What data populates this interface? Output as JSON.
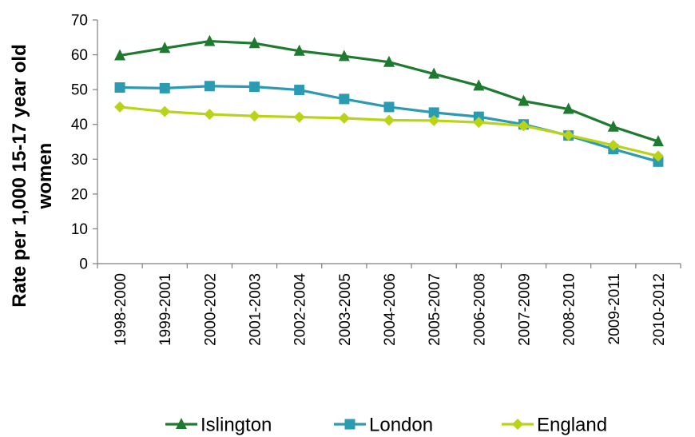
{
  "chart_data": {
    "type": "line",
    "title": "",
    "xlabel": "",
    "ylabel_lines": [
      "Rate per 1,000 15-17 year old",
      "women"
    ],
    "ylim": [
      0,
      70
    ],
    "yticks": [
      0,
      10,
      20,
      30,
      40,
      50,
      60,
      70
    ],
    "grid": false,
    "legend_position": "bottom",
    "categories": [
      "1998-2000",
      "1999-2001",
      "2000-2002",
      "2001-2003",
      "2002-2004",
      "2003-2005",
      "2004-2006",
      "2005-2007",
      "2006-2008",
      "2007-2009",
      "2008-2010",
      "2009-2011",
      "2010-2012"
    ],
    "series": [
      {
        "name": "Islington",
        "color": "#1e7a2e",
        "marker": "triangle",
        "values": [
          59.8,
          61.9,
          63.9,
          63.3,
          61.1,
          59.6,
          57.9,
          54.5,
          51.1,
          46.7,
          44.4,
          39.3,
          35.1
        ]
      },
      {
        "name": "London",
        "color": "#2a9bb1",
        "marker": "square",
        "values": [
          50.6,
          50.4,
          51.0,
          50.8,
          49.9,
          47.3,
          45.0,
          43.4,
          42.2,
          40.0,
          36.8,
          32.9,
          29.3
        ]
      },
      {
        "name": "England",
        "color": "#b9d417",
        "marker": "diamond",
        "values": [
          45.0,
          43.7,
          42.9,
          42.4,
          42.1,
          41.8,
          41.2,
          41.1,
          40.6,
          39.6,
          36.9,
          34.0,
          30.9
        ]
      }
    ]
  }
}
